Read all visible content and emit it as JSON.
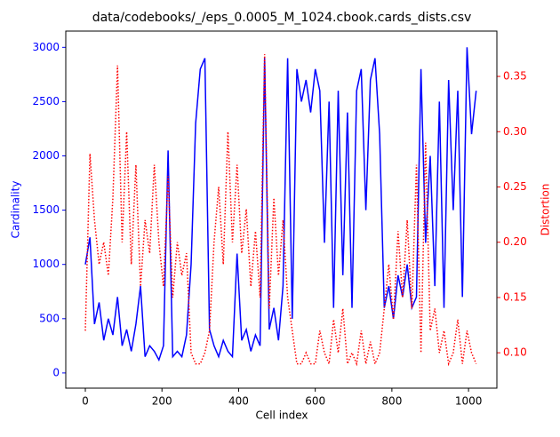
{
  "chart_data": {
    "type": "line",
    "title": "data/codebooks/_/eps_0.0005_M_1024.cbook.cards_dists.csv",
    "xlabel": "Cell index",
    "ylabel": "Cardinality",
    "y2label": "Distortion",
    "x": [
      0,
      12,
      24,
      36,
      48,
      60,
      72,
      84,
      96,
      108,
      120,
      132,
      144,
      156,
      168,
      180,
      192,
      204,
      216,
      228,
      240,
      252,
      264,
      276,
      288,
      300,
      312,
      324,
      336,
      348,
      360,
      372,
      384,
      396,
      408,
      420,
      432,
      444,
      456,
      468,
      480,
      492,
      504,
      516,
      528,
      540,
      552,
      564,
      576,
      588,
      600,
      612,
      624,
      636,
      648,
      660,
      672,
      684,
      696,
      708,
      720,
      732,
      744,
      756,
      768,
      780,
      792,
      804,
      816,
      828,
      840,
      852,
      864,
      876,
      888,
      900,
      912,
      924,
      936,
      948,
      960,
      972,
      984,
      996,
      1008,
      1020
    ],
    "series": [
      {
        "name": "Cardinality",
        "color": "#0000ff",
        "style": "solid",
        "values": [
          1000,
          1250,
          450,
          650,
          300,
          500,
          350,
          700,
          250,
          400,
          200,
          450,
          800,
          150,
          250,
          200,
          120,
          250,
          2050,
          150,
          200,
          150,
          350,
          1000,
          2300,
          2800,
          2900,
          400,
          250,
          150,
          300,
          200,
          150,
          1100,
          300,
          400,
          200,
          350,
          250,
          2900,
          400,
          600,
          300,
          800,
          2900,
          500,
          2800,
          2500,
          2700,
          2400,
          2800,
          2600,
          1200,
          2500,
          600,
          2600,
          900,
          2400,
          600,
          2600,
          2800,
          1500,
          2700,
          2900,
          2200,
          600,
          800,
          500,
          900,
          700,
          1000,
          600,
          700,
          2800,
          1200,
          2000,
          800,
          2500,
          600,
          2700,
          1500,
          2600,
          700,
          3000,
          2200,
          2600
        ]
      },
      {
        "name": "Distortion",
        "color": "#ff0000",
        "style": "dotted",
        "axis": "y2",
        "values": [
          0.12,
          0.28,
          0.22,
          0.18,
          0.2,
          0.17,
          0.24,
          0.36,
          0.2,
          0.3,
          0.18,
          0.27,
          0.16,
          0.22,
          0.19,
          0.27,
          0.2,
          0.16,
          0.26,
          0.15,
          0.2,
          0.17,
          0.19,
          0.1,
          0.09,
          0.09,
          0.1,
          0.12,
          0.2,
          0.25,
          0.18,
          0.3,
          0.2,
          0.27,
          0.19,
          0.23,
          0.16,
          0.21,
          0.15,
          0.37,
          0.14,
          0.24,
          0.17,
          0.22,
          0.15,
          0.12,
          0.09,
          0.09,
          0.1,
          0.09,
          0.09,
          0.12,
          0.1,
          0.09,
          0.13,
          0.1,
          0.14,
          0.09,
          0.1,
          0.09,
          0.12,
          0.09,
          0.11,
          0.09,
          0.1,
          0.14,
          0.18,
          0.13,
          0.21,
          0.15,
          0.22,
          0.14,
          0.27,
          0.1,
          0.29,
          0.12,
          0.14,
          0.1,
          0.12,
          0.09,
          0.1,
          0.13,
          0.09,
          0.12,
          0.1,
          0.09
        ]
      }
    ],
    "xlim": [
      -51,
      1074
    ],
    "xticks": [
      0,
      200,
      400,
      600,
      800,
      1000
    ],
    "ylim": [
      -140,
      3150
    ],
    "yticks": [
      0,
      500,
      1000,
      1500,
      2000,
      2500,
      3000
    ],
    "y2lim": [
      0.068,
      0.391
    ],
    "y2ticks": [
      {
        "value": 0.1,
        "label": "0.10"
      },
      0.15,
      {
        "value": 0.2,
        "label": "0.20"
      },
      0.25,
      {
        "value": 0.3,
        "label": "0.30"
      },
      0.35
    ]
  }
}
